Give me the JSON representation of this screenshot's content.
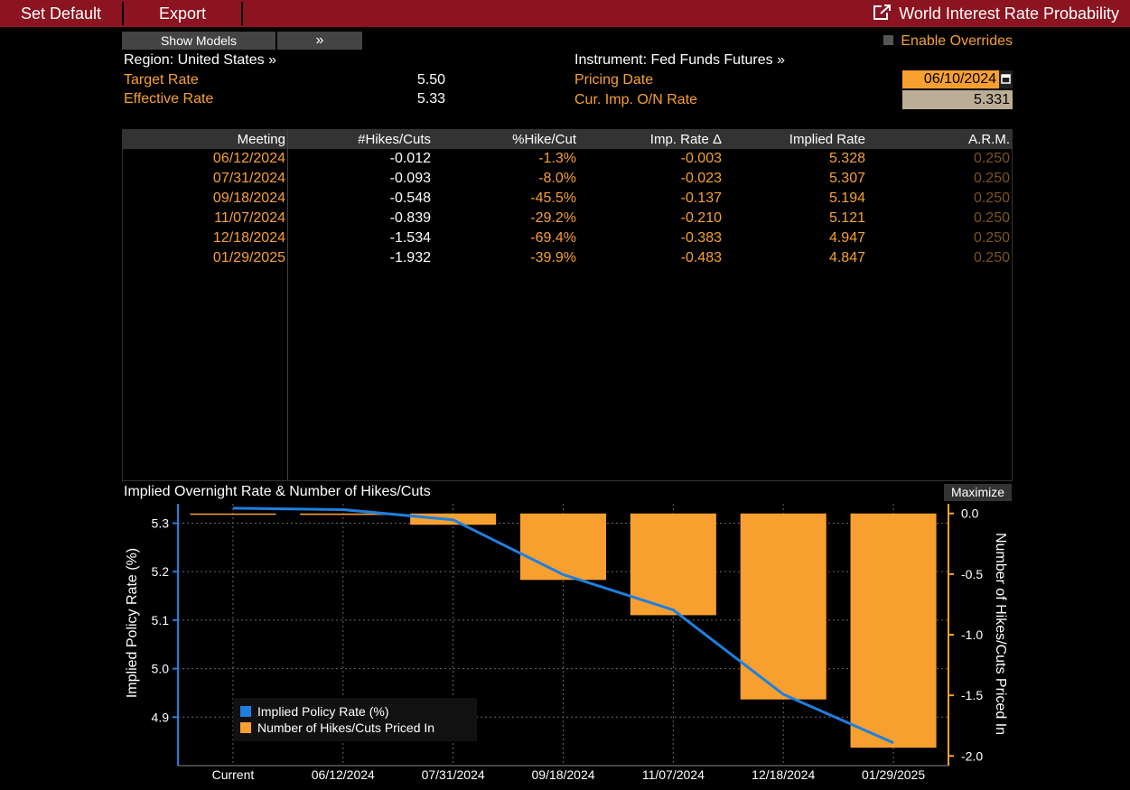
{
  "topbar": {
    "set_default": "Set Default",
    "export": "Export",
    "title": "World Interest Rate Probability"
  },
  "controls": {
    "show_models": "Show Models",
    "expand": "»",
    "enable_overrides": "Enable Overrides"
  },
  "info": {
    "region": "Region: United States »",
    "target_rate_label": "Target Rate",
    "target_rate_value": "5.50",
    "effective_rate_label": "Effective Rate",
    "effective_rate_value": "5.33",
    "instrument": "Instrument: Fed Funds Futures »",
    "pricing_date_label": "Pricing Date",
    "pricing_date_value": "06/10/2024",
    "cur_imp_label": "Cur. Imp. O/N Rate",
    "cur_imp_value": "5.331"
  },
  "table": {
    "headers": [
      "Meeting",
      "#Hikes/Cuts",
      "%Hike/Cut",
      "Imp. Rate Δ",
      "Implied Rate",
      "A.R.M."
    ],
    "rows": [
      {
        "meeting": "06/12/2024",
        "hikes": "-0.012",
        "pct": "-1.3%",
        "delta": "-0.003",
        "implied": "5.328",
        "arm": "0.250"
      },
      {
        "meeting": "07/31/2024",
        "hikes": "-0.093",
        "pct": "-8.0%",
        "delta": "-0.023",
        "implied": "5.307",
        "arm": "0.250"
      },
      {
        "meeting": "09/18/2024",
        "hikes": "-0.548",
        "pct": "-45.5%",
        "delta": "-0.137",
        "implied": "5.194",
        "arm": "0.250"
      },
      {
        "meeting": "11/07/2024",
        "hikes": "-0.839",
        "pct": "-29.2%",
        "delta": "-0.210",
        "implied": "5.121",
        "arm": "0.250"
      },
      {
        "meeting": "12/18/2024",
        "hikes": "-1.534",
        "pct": "-69.4%",
        "delta": "-0.383",
        "implied": "4.947",
        "arm": "0.250"
      },
      {
        "meeting": "01/29/2025",
        "hikes": "-1.932",
        "pct": "-39.9%",
        "delta": "-0.483",
        "implied": "4.847",
        "arm": "0.250"
      }
    ]
  },
  "chart": {
    "title": "Implied Overnight Rate & Number of Hikes/Cuts",
    "maximize": "Maximize"
  },
  "colors": {
    "topbar": "#8b1420",
    "accent_orange": "#f7a030",
    "line_blue": "#1e7fe0"
  },
  "chart_data": {
    "type": "bar",
    "categories": [
      "Current",
      "06/12/2024",
      "07/31/2024",
      "09/18/2024",
      "11/07/2024",
      "12/18/2024",
      "01/29/2025"
    ],
    "series": [
      {
        "name": "Implied Policy Rate (%)",
        "type": "line",
        "axis": "left",
        "values": [
          5.331,
          5.328,
          5.307,
          5.194,
          5.121,
          4.947,
          4.847
        ]
      },
      {
        "name": "Number of Hikes/Cuts Priced In",
        "type": "bar",
        "axis": "right",
        "values": [
          0,
          -0.012,
          -0.093,
          -0.548,
          -0.839,
          -1.534,
          -1.932
        ]
      }
    ],
    "ylabel": "Implied Policy Rate (%)",
    "y2label": "Number of Hikes/Cuts Priced In",
    "ylim": [
      4.8,
      5.34
    ],
    "y2lim": [
      -2.08,
      0.08
    ],
    "yticks": [
      "5.3",
      "5.2",
      "5.1",
      "5.0",
      "4.9"
    ],
    "y2ticks": [
      "0.0",
      "-0.5",
      "-1.0",
      "-1.5",
      "-2.0"
    ],
    "grid": true,
    "legend": "bottom-left"
  }
}
